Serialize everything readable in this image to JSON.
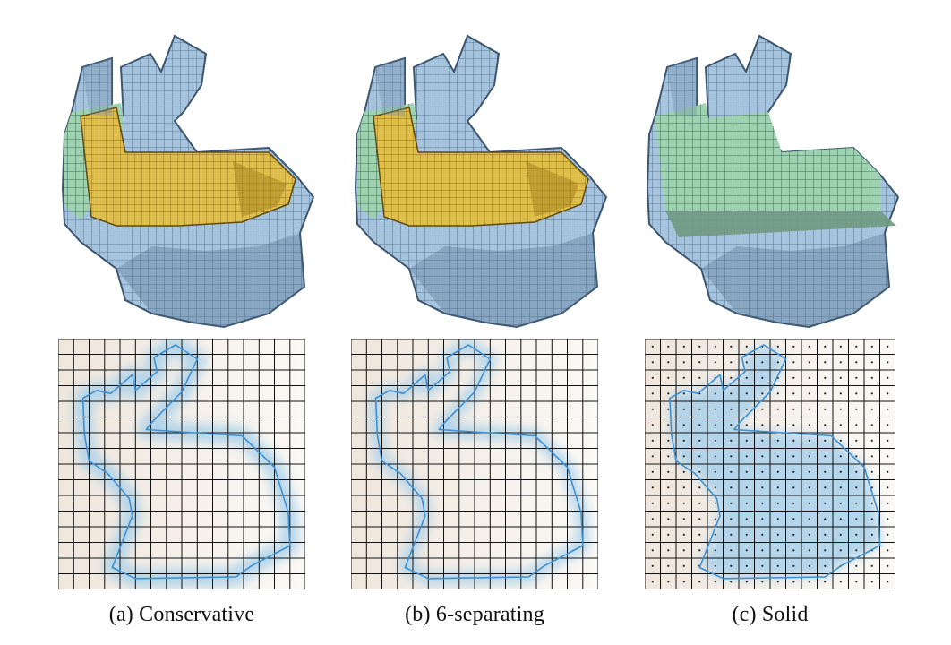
{
  "figure": {
    "panels": [
      {
        "id": "conservative",
        "caption": "(a) Conservative",
        "mode": "conservative"
      },
      {
        "id": "six-separating",
        "caption": "(b) 6-separating",
        "mode": "six"
      },
      {
        "id": "solid",
        "caption": "(c) Solid",
        "mode": "solid"
      }
    ],
    "grid_cells": 16,
    "colors": {
      "blue_voxel": "#a7c4df",
      "blue_voxel_dark": "#5d7a96",
      "yellow_cut": "#e0be4a",
      "green_cut": "#9fd2b1",
      "grid_line": "#111111",
      "cell_fill_light": "#f6f1ea",
      "highlight": "#a8d0ea",
      "curve": "#3f8fd0"
    }
  }
}
